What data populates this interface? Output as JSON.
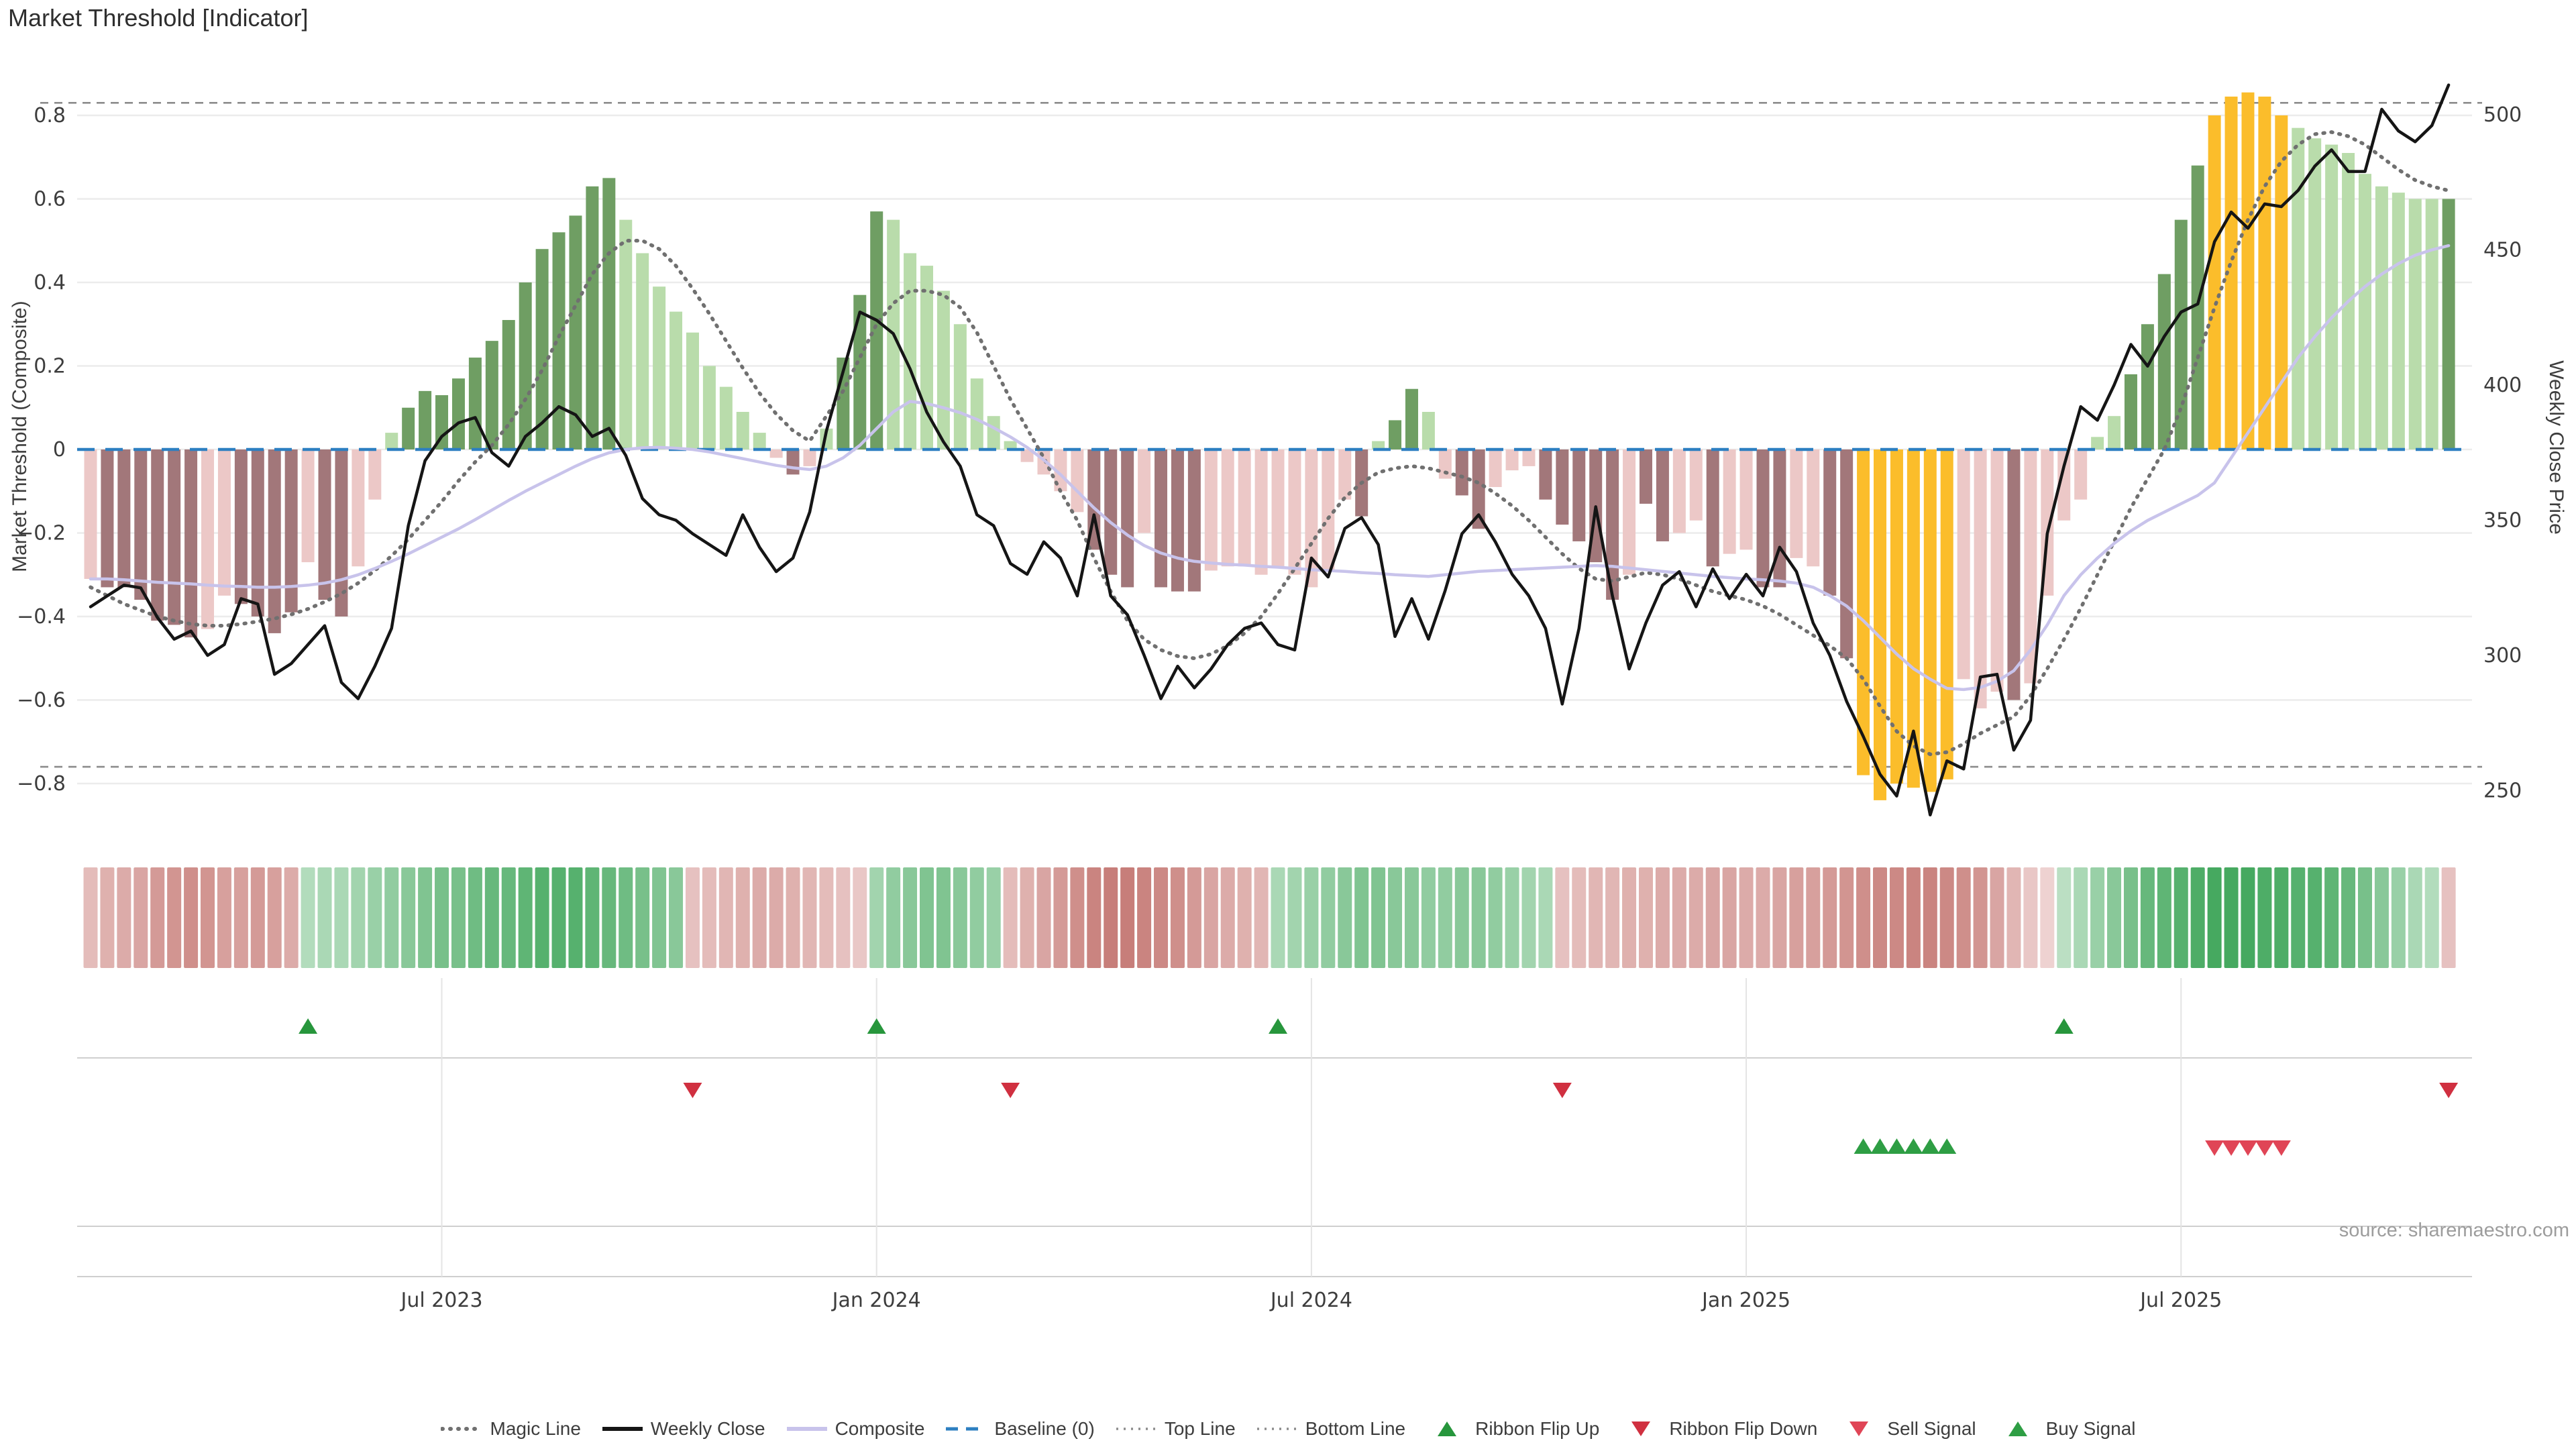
{
  "title": "Market Threshold [Indicator]",
  "source": "source: sharemaestro.com",
  "axes": {
    "left": {
      "label": "Market Threshold (Composite)",
      "tick_labels": [
        "0.8",
        "0.6",
        "0.4",
        "0.2",
        "0",
        "−0.2",
        "−0.4",
        "−0.6",
        "−0.8"
      ],
      "tick_values": [
        0.8,
        0.6,
        0.4,
        0.2,
        0,
        -0.2,
        -0.4,
        -0.6,
        -0.8
      ]
    },
    "right": {
      "label": "Weekly Close Price",
      "tick_labels": [
        "500",
        "450",
        "400",
        "350",
        "300",
        "250"
      ],
      "tick_values": [
        500,
        450,
        400,
        350,
        300,
        250
      ]
    },
    "x": {
      "tick_labels": [
        "Jul 2023",
        "Jan 2024",
        "Jul 2024",
        "Jan 2025",
        "Jul 2025"
      ],
      "tick_weeks": [
        21,
        47,
        73,
        99,
        125
      ]
    }
  },
  "legend": [
    {
      "id": "magic-line",
      "label": "Magic Line",
      "marker": "dotted-line",
      "color": "#707070"
    },
    {
      "id": "weekly-close",
      "label": "Weekly Close",
      "marker": "solid-line",
      "color": "#151515"
    },
    {
      "id": "composite",
      "label": "Composite",
      "marker": "solid-line",
      "color": "#c8c3eb"
    },
    {
      "id": "baseline",
      "label": "Baseline (0)",
      "marker": "dashed-line",
      "color": "#2d7fc1"
    },
    {
      "id": "top-line",
      "label": "Top Line",
      "marker": "fine-dotted-line",
      "color": "#8c8c8c"
    },
    {
      "id": "bottom-line",
      "label": "Bottom Line",
      "marker": "fine-dotted-line",
      "color": "#8c8c8c"
    },
    {
      "id": "ribbon-flip-up",
      "label": "Ribbon Flip Up",
      "marker": "triangle-up",
      "color": "#27963c"
    },
    {
      "id": "ribbon-flip-down",
      "label": "Ribbon Flip Down",
      "marker": "triangle-down",
      "color": "#d03040"
    },
    {
      "id": "sell-signal",
      "label": "Sell Signal",
      "marker": "triangle-down",
      "color": "#e04556"
    },
    {
      "id": "buy-signal",
      "label": "Buy Signal",
      "marker": "triangle-up",
      "color": "#2e9e44"
    }
  ],
  "colors": {
    "bar_maroon": "#a2777a",
    "bar_pink": "#ecc8c7",
    "bar_light_green": "#b9dcab",
    "bar_dark_green": "#6f9e63",
    "bar_gold": "#fbbd2b",
    "weekly_close": "#151515",
    "composite": "#c8c3eb",
    "magic": "#707070",
    "baseline": "#2d7fc1",
    "top_bottom": "#8c8c8c",
    "grid": "#ececec",
    "panel_line": "#c9c9c9",
    "tick_text": "#3d3d3d",
    "flip_up": "#27963c",
    "flip_down": "#d03040",
    "sell": "#e04556",
    "buy": "#2e9e44",
    "ribbon_green_lo": "#dcefdf",
    "ribbon_green_hi": "#35a152",
    "ribbon_pink_lo": "#f6e3e3",
    "ribbon_pink_hi": "#c2736e"
  },
  "chart_data": {
    "type": "combo",
    "x_unit": "week",
    "num_weeks": 142,
    "x_range_note": "weekly bars from Feb 2023 to Nov 2025",
    "left_axis_label": "Market Threshold (Composite)",
    "right_axis_label": "Weekly Close Price",
    "left_ylim": [
      -0.9,
      0.9
    ],
    "right_ylim": [
      240,
      515
    ],
    "top_line": 0.83,
    "bottom_line": -0.76,
    "baseline": 0,
    "grid": "horizontal-only",
    "legend_position": "bottom-center",
    "threshold_bars": {
      "values": [
        -0.31,
        -0.33,
        -0.33,
        -0.36,
        -0.41,
        -0.42,
        -0.45,
        -0.43,
        -0.35,
        -0.37,
        -0.4,
        -0.44,
        -0.39,
        -0.27,
        -0.36,
        -0.4,
        -0.28,
        -0.12,
        0.04,
        0.1,
        0.14,
        0.13,
        0.17,
        0.22,
        0.26,
        0.31,
        0.4,
        0.48,
        0.52,
        0.56,
        0.63,
        0.65,
        0.55,
        0.47,
        0.39,
        0.33,
        0.28,
        0.2,
        0.15,
        0.09,
        0.04,
        -0.02,
        -0.06,
        -0.04,
        0.05,
        0.22,
        0.37,
        0.57,
        0.55,
        0.47,
        0.44,
        0.38,
        0.3,
        0.17,
        0.08,
        0.02,
        -0.03,
        -0.06,
        -0.1,
        -0.15,
        -0.24,
        -0.3,
        -0.33,
        -0.2,
        -0.33,
        -0.34,
        -0.34,
        -0.29,
        -0.28,
        -0.28,
        -0.3,
        -0.28,
        -0.3,
        -0.33,
        -0.29,
        -0.12,
        -0.16,
        0.02,
        0.07,
        0.145,
        0.09,
        -0.07,
        -0.11,
        -0.19,
        -0.09,
        -0.05,
        -0.04,
        -0.12,
        -0.18,
        -0.22,
        -0.27,
        -0.36,
        -0.3,
        -0.13,
        -0.22,
        -0.2,
        -0.17,
        -0.28,
        -0.25,
        -0.24,
        -0.33,
        -0.33,
        -0.26,
        -0.28,
        -0.35,
        -0.5,
        -0.78,
        -0.84,
        -0.8,
        -0.81,
        -0.82,
        -0.79,
        -0.55,
        -0.62,
        -0.58,
        -0.6,
        -0.56,
        -0.35,
        -0.17,
        -0.12,
        0.03,
        0.08,
        0.18,
        0.3,
        0.42,
        0.55,
        0.68,
        0.8,
        0.845,
        0.855,
        0.845,
        0.8,
        0.77,
        0.745,
        0.73,
        0.71,
        0.66,
        0.63,
        0.615,
        0.6,
        0.6,
        0.6
      ],
      "classes": [
        "P",
        "M",
        "M",
        "M",
        "M",
        "M",
        "M",
        "P",
        "P",
        "M",
        "M",
        "M",
        "M",
        "P",
        "M",
        "M",
        "P",
        "P",
        "LG",
        "DG",
        "DG",
        "DG",
        "DG",
        "DG",
        "DG",
        "DG",
        "DG",
        "DG",
        "DG",
        "DG",
        "DG",
        "DG",
        "LG",
        "LG",
        "LG",
        "LG",
        "LG",
        "LG",
        "LG",
        "LG",
        "LG",
        "P",
        "M",
        "P",
        "LG",
        "DG",
        "DG",
        "DG",
        "LG",
        "LG",
        "LG",
        "LG",
        "LG",
        "LG",
        "LG",
        "LG",
        "P",
        "P",
        "P",
        "P",
        "M",
        "M",
        "M",
        "P",
        "M",
        "M",
        "M",
        "P",
        "P",
        "P",
        "P",
        "P",
        "P",
        "P",
        "P",
        "P",
        "M",
        "LG",
        "DG",
        "DG",
        "LG",
        "P",
        "M",
        "M",
        "P",
        "P",
        "P",
        "M",
        "M",
        "M",
        "M",
        "M",
        "P",
        "M",
        "M",
        "P",
        "P",
        "M",
        "P",
        "P",
        "M",
        "M",
        "P",
        "P",
        "M",
        "M",
        "G",
        "G",
        "G",
        "G",
        "G",
        "G",
        "P",
        "P",
        "P",
        "M",
        "P",
        "P",
        "P",
        "P",
        "LG",
        "LG",
        "DG",
        "DG",
        "DG",
        "DG",
        "DG",
        "G",
        "G",
        "G",
        "G",
        "G",
        "LG",
        "LG",
        "LG",
        "LG",
        "LG",
        "LG",
        "LG",
        "LG",
        "LG",
        "DG"
      ],
      "class_colors": {
        "P": "bar_pink",
        "M": "bar_maroon",
        "LG": "bar_light_green",
        "DG": "bar_dark_green",
        "G": "bar_gold"
      }
    },
    "weekly_close": [
      318,
      322,
      326,
      325,
      314,
      306,
      309,
      300,
      304,
      321,
      319,
      293,
      297,
      304,
      311,
      290,
      284,
      296,
      310,
      348,
      372,
      381,
      386,
      388,
      375,
      370,
      381,
      386,
      392,
      389,
      381,
      384,
      374,
      358,
      352,
      350,
      345,
      341,
      337,
      352,
      340,
      331,
      336,
      353,
      383,
      405,
      427,
      424,
      419,
      406,
      390,
      379,
      370,
      352,
      348,
      334,
      330,
      342,
      336,
      322,
      352,
      322,
      315,
      300,
      284,
      296,
      288,
      295,
      304,
      310,
      312,
      304,
      302,
      336,
      329,
      347,
      351,
      341,
      307,
      321,
      306,
      324,
      345,
      352,
      342,
      330,
      322,
      310,
      282,
      310,
      355,
      322,
      295,
      312,
      326,
      331,
      318,
      332,
      321,
      330,
      322,
      340,
      331,
      312,
      300,
      283,
      270,
      256,
      248,
      272,
      241,
      261,
      258,
      292,
      293,
      265,
      276,
      345,
      370,
      392,
      387,
      400,
      415,
      407,
      418,
      427,
      430,
      453,
      464,
      458,
      467,
      466,
      472,
      481,
      487,
      479,
      479,
      502,
      494,
      490,
      496,
      511
    ],
    "composite": [
      -0.31,
      -0.31,
      -0.312,
      -0.315,
      -0.318,
      -0.32,
      -0.322,
      -0.325,
      -0.327,
      -0.328,
      -0.33,
      -0.33,
      -0.328,
      -0.325,
      -0.32,
      -0.312,
      -0.3,
      -0.285,
      -0.268,
      -0.25,
      -0.23,
      -0.21,
      -0.19,
      -0.168,
      -0.145,
      -0.122,
      -0.1,
      -0.08,
      -0.06,
      -0.04,
      -0.022,
      -0.008,
      0.0,
      0.004,
      0.005,
      0.003,
      0.0,
      -0.006,
      -0.014,
      -0.022,
      -0.03,
      -0.038,
      -0.044,
      -0.048,
      -0.04,
      -0.02,
      0.01,
      0.05,
      0.09,
      0.115,
      0.11,
      0.1,
      0.088,
      0.072,
      0.052,
      0.03,
      0.005,
      -0.025,
      -0.06,
      -0.1,
      -0.14,
      -0.175,
      -0.205,
      -0.23,
      -0.248,
      -0.26,
      -0.268,
      -0.272,
      -0.275,
      -0.277,
      -0.28,
      -0.282,
      -0.285,
      -0.288,
      -0.29,
      -0.292,
      -0.295,
      -0.297,
      -0.3,
      -0.302,
      -0.304,
      -0.3,
      -0.296,
      -0.292,
      -0.29,
      -0.288,
      -0.286,
      -0.284,
      -0.282,
      -0.28,
      -0.278,
      -0.28,
      -0.284,
      -0.288,
      -0.292,
      -0.296,
      -0.3,
      -0.304,
      -0.307,
      -0.31,
      -0.312,
      -0.315,
      -0.32,
      -0.33,
      -0.35,
      -0.375,
      -0.41,
      -0.45,
      -0.49,
      -0.525,
      -0.55,
      -0.572,
      -0.575,
      -0.57,
      -0.555,
      -0.53,
      -0.48,
      -0.42,
      -0.35,
      -0.3,
      -0.26,
      -0.225,
      -0.195,
      -0.17,
      -0.15,
      -0.13,
      -0.11,
      -0.08,
      -0.02,
      0.04,
      0.1,
      0.16,
      0.22,
      0.27,
      0.315,
      0.355,
      0.39,
      0.42,
      0.445,
      0.465,
      0.478,
      0.488
    ],
    "magic_line": [
      -0.33,
      -0.35,
      -0.37,
      -0.385,
      -0.4,
      -0.41,
      -0.418,
      -0.422,
      -0.422,
      -0.418,
      -0.412,
      -0.405,
      -0.395,
      -0.382,
      -0.365,
      -0.345,
      -0.32,
      -0.29,
      -0.255,
      -0.215,
      -0.17,
      -0.125,
      -0.075,
      -0.03,
      0.01,
      0.06,
      0.12,
      0.19,
      0.27,
      0.345,
      0.42,
      0.47,
      0.5,
      0.5,
      0.48,
      0.44,
      0.385,
      0.325,
      0.26,
      0.195,
      0.135,
      0.085,
      0.045,
      0.02,
      0.08,
      0.14,
      0.22,
      0.3,
      0.35,
      0.38,
      0.38,
      0.37,
      0.34,
      0.28,
      0.2,
      0.12,
      0.05,
      -0.02,
      -0.1,
      -0.17,
      -0.26,
      -0.34,
      -0.41,
      -0.455,
      -0.48,
      -0.495,
      -0.5,
      -0.49,
      -0.47,
      -0.44,
      -0.4,
      -0.345,
      -0.285,
      -0.225,
      -0.165,
      -0.115,
      -0.08,
      -0.055,
      -0.045,
      -0.04,
      -0.045,
      -0.055,
      -0.065,
      -0.08,
      -0.105,
      -0.135,
      -0.17,
      -0.21,
      -0.25,
      -0.285,
      -0.31,
      -0.315,
      -0.305,
      -0.295,
      -0.3,
      -0.31,
      -0.325,
      -0.34,
      -0.35,
      -0.36,
      -0.375,
      -0.395,
      -0.42,
      -0.445,
      -0.47,
      -0.5,
      -0.55,
      -0.615,
      -0.675,
      -0.71,
      -0.73,
      -0.725,
      -0.705,
      -0.68,
      -0.66,
      -0.64,
      -0.59,
      -0.525,
      -0.455,
      -0.38,
      -0.3,
      -0.22,
      -0.14,
      -0.07,
      0.0,
      0.1,
      0.22,
      0.34,
      0.45,
      0.55,
      0.63,
      0.69,
      0.73,
      0.755,
      0.76,
      0.75,
      0.73,
      0.7,
      0.67,
      0.645,
      0.63,
      0.62
    ],
    "ribbon": [
      -0.35,
      -0.45,
      -0.5,
      -0.55,
      -0.65,
      -0.7,
      -0.75,
      -0.7,
      -0.6,
      -0.6,
      -0.65,
      -0.6,
      -0.5,
      0.25,
      0.3,
      0.3,
      0.35,
      0.4,
      0.45,
      0.5,
      0.55,
      0.6,
      0.6,
      0.65,
      0.7,
      0.7,
      0.75,
      0.8,
      0.8,
      0.8,
      0.75,
      0.7,
      0.65,
      0.6,
      0.55,
      0.5,
      -0.3,
      -0.35,
      -0.4,
      -0.45,
      -0.5,
      -0.5,
      -0.45,
      -0.4,
      -0.35,
      -0.3,
      -0.25,
      0.35,
      0.45,
      0.5,
      0.55,
      0.55,
      0.5,
      0.45,
      0.4,
      -0.35,
      -0.45,
      -0.55,
      -0.65,
      -0.75,
      -0.85,
      -0.9,
      -0.9,
      -0.85,
      -0.8,
      -0.75,
      -0.65,
      -0.55,
      -0.5,
      -0.45,
      -0.4,
      0.3,
      0.35,
      0.4,
      0.45,
      0.5,
      0.55,
      0.55,
      0.5,
      0.5,
      0.45,
      0.45,
      0.5,
      0.5,
      0.45,
      0.4,
      0.35,
      0.3,
      -0.3,
      -0.35,
      -0.4,
      -0.4,
      -0.45,
      -0.45,
      -0.5,
      -0.5,
      -0.5,
      -0.55,
      -0.55,
      -0.5,
      -0.5,
      -0.55,
      -0.6,
      -0.6,
      -0.65,
      -0.7,
      -0.75,
      -0.8,
      -0.8,
      -0.85,
      -0.85,
      -0.8,
      -0.75,
      -0.7,
      -0.55,
      -0.4,
      -0.25,
      -0.15,
      0.2,
      0.3,
      0.4,
      0.5,
      0.6,
      0.7,
      0.75,
      0.8,
      0.85,
      0.9,
      0.9,
      0.9,
      0.85,
      0.85,
      0.8,
      0.8,
      0.75,
      0.7,
      0.6,
      0.5,
      0.4,
      0.3,
      0.25,
      -0.3
    ],
    "signals": {
      "ribbon_flip_up_weeks": [
        13,
        47,
        71,
        118
      ],
      "ribbon_flip_down_weeks": [
        36,
        55,
        88,
        141
      ],
      "buy_signal_weeks": [
        106,
        107,
        108,
        109,
        110,
        111
      ],
      "sell_signal_weeks": [
        127,
        128,
        129,
        130,
        131
      ]
    }
  }
}
